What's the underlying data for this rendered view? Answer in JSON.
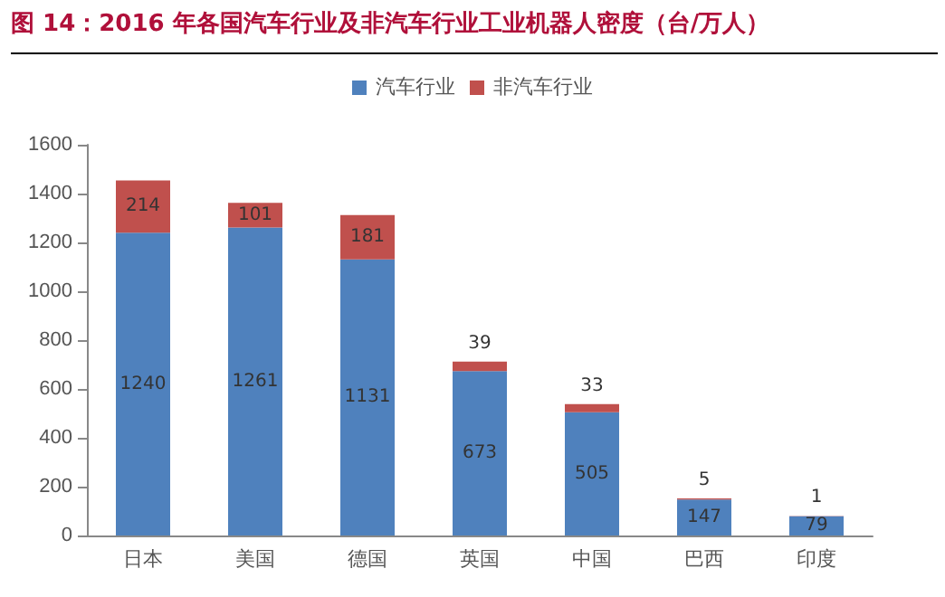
{
  "chart_data": {
    "type": "bar",
    "title": "图 14：2016 年各国汽车行业及非汽车行业工业机器人密度（台/万人）",
    "categories": [
      "日本",
      "美国",
      "德国",
      "英国",
      "中国",
      "巴西",
      "印度"
    ],
    "series": [
      {
        "name": "汽车行业",
        "color": "#4f81bd",
        "values": [
          1240,
          1261,
          1131,
          673,
          505,
          147,
          79
        ]
      },
      {
        "name": "非汽车行业",
        "color": "#c0504d",
        "values": [
          214,
          101,
          181,
          39,
          33,
          5,
          1
        ]
      }
    ],
    "stacked": true,
    "data_labels": true,
    "ylim": [
      0,
      1600
    ],
    "yticks": [
      0,
      200,
      400,
      600,
      800,
      1000,
      1200,
      1400,
      1600
    ],
    "grid": false,
    "legend": "top"
  }
}
